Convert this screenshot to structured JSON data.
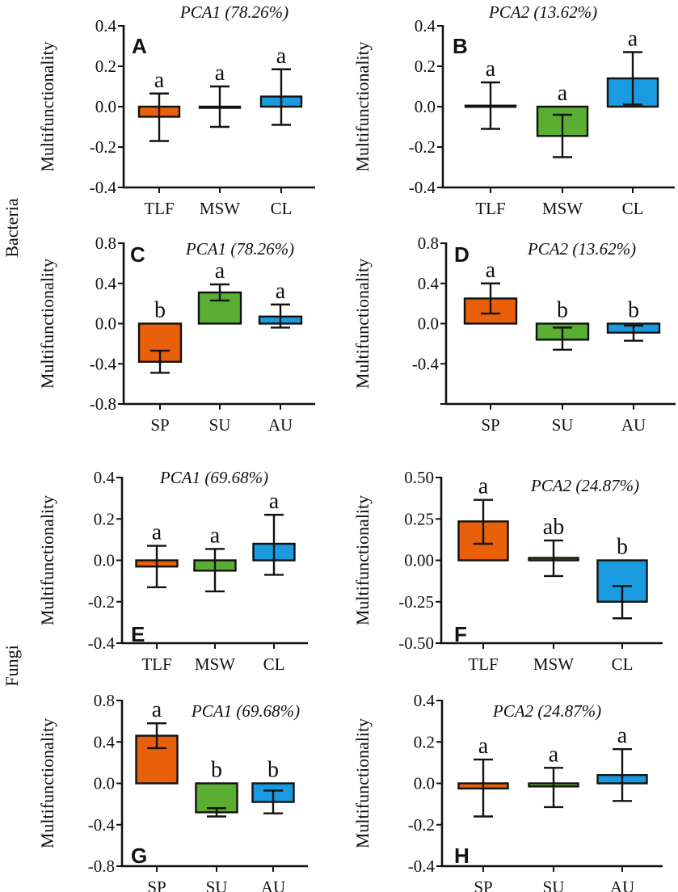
{
  "chart_data": {
    "type": "bar",
    "colors": {
      "orange": "#E8600A",
      "green": "#5AAE32",
      "blue": "#1A9BE0",
      "dark_green": "#5E8A34"
    },
    "row_labels": [
      "Bacteria",
      "Fungi"
    ],
    "ylabel": "Multifunctionality",
    "panels": [
      {
        "id": "A",
        "title": "PCA1 (78.26%)",
        "ylim": [
          -0.4,
          0.4
        ],
        "ticks": [
          "0.4",
          "0.2",
          "0.0",
          "-0.2",
          "-0.4"
        ],
        "categories": [
          "TLF",
          "MSW",
          "CL"
        ],
        "values": [
          -0.05,
          0.0,
          0.05
        ],
        "err_high": [
          0.065,
          0.1,
          0.185
        ],
        "err_low": [
          -0.17,
          -0.1,
          -0.09
        ],
        "sig": [
          "a",
          "a",
          "a"
        ],
        "colors": [
          "orange",
          "green",
          "blue"
        ]
      },
      {
        "id": "B",
        "title": "PCA2 (13.62%)",
        "ylim": [
          -0.4,
          0.4
        ],
        "ticks": [
          "0.4",
          "0.2",
          "0.0",
          "-0.2",
          "-0.4"
        ],
        "categories": [
          "TLF",
          "MSW",
          "CL"
        ],
        "values": [
          0.005,
          -0.145,
          0.14
        ],
        "err_high": [
          0.12,
          -0.04,
          0.27
        ],
        "err_low": [
          -0.11,
          -0.25,
          0.01
        ],
        "sig": [
          "a",
          "a",
          "a"
        ],
        "colors": [
          "orange",
          "green",
          "blue"
        ]
      },
      {
        "id": "C",
        "title": "PCA1 (78.26%)",
        "ylim": [
          -0.8,
          0.8
        ],
        "ticks": [
          "0.8",
          "0.4",
          "0.0",
          "-0.4",
          "-0.8"
        ],
        "categories": [
          "SP",
          "SU",
          "AU"
        ],
        "values": [
          -0.38,
          0.31,
          0.07
        ],
        "err_high": [
          -0.27,
          0.39,
          0.19
        ],
        "err_low": [
          -0.49,
          0.23,
          -0.04
        ],
        "sig": [
          "b",
          "a",
          "a"
        ],
        "colors": [
          "orange",
          "green",
          "blue"
        ]
      },
      {
        "id": "D",
        "title": "PCA2 (13.62%)",
        "ylim": [
          -0.8,
          0.8
        ],
        "ticks": [
          "0.8",
          "0.4",
          "0.0",
          "-0.4",
          ""
        ],
        "categories": [
          "SP",
          "SU",
          "AU"
        ],
        "values": [
          0.25,
          -0.16,
          -0.09
        ],
        "err_high": [
          0.4,
          -0.04,
          -0.02
        ],
        "err_low": [
          0.1,
          -0.26,
          -0.17
        ],
        "sig": [
          "a",
          "b",
          "b"
        ],
        "colors": [
          "orange",
          "green",
          "blue"
        ]
      },
      {
        "id": "E",
        "title": "PCA1 (69.68%)",
        "ylim": [
          -0.4,
          0.4
        ],
        "ticks": [
          "0.4",
          "0.2",
          "0.0",
          "-0.2",
          "-0.4"
        ],
        "categories": [
          "TLF",
          "MSW",
          "CL"
        ],
        "values": [
          -0.03,
          -0.05,
          0.08
        ],
        "err_high": [
          0.07,
          0.055,
          0.22
        ],
        "err_low": [
          -0.13,
          -0.15,
          -0.07
        ],
        "sig": [
          "a",
          "a",
          "a"
        ],
        "colors": [
          "orange",
          "green",
          "blue"
        ]
      },
      {
        "id": "F",
        "title": "PCA2 (24.87%)",
        "ylim": [
          -0.5,
          0.5
        ],
        "ticks": [
          "0.50",
          "0.25",
          "0.00",
          "-0.25",
          "-0.50"
        ],
        "categories": [
          "TLF",
          "MSW",
          "CL"
        ],
        "values": [
          0.235,
          0.015,
          -0.25
        ],
        "err_high": [
          0.365,
          0.12,
          -0.155
        ],
        "err_low": [
          0.1,
          -0.095,
          -0.35
        ],
        "sig": [
          "a",
          "ab",
          "b"
        ],
        "colors": [
          "orange",
          "dark_green",
          "blue"
        ]
      },
      {
        "id": "G",
        "title": "PCA1 (69.68%)",
        "ylim": [
          -0.8,
          0.8
        ],
        "ticks": [
          "0.8",
          "0.4",
          "0.0",
          "-0.4",
          "-0.8"
        ],
        "categories": [
          "SP",
          "SU",
          "AU"
        ],
        "values": [
          0.46,
          -0.28,
          -0.18
        ],
        "err_high": [
          0.58,
          -0.24,
          -0.07
        ],
        "err_low": [
          0.34,
          -0.32,
          -0.29
        ],
        "sig": [
          "a",
          "b",
          "b"
        ],
        "colors": [
          "orange",
          "green",
          "blue"
        ]
      },
      {
        "id": "H",
        "title": "PCA2 (24.87%)",
        "ylim": [
          -0.4,
          0.4
        ],
        "ticks": [
          "0.4",
          "0.2",
          "0.0",
          "-0.2",
          "-0.4"
        ],
        "categories": [
          "SP",
          "SU",
          "AU"
        ],
        "values": [
          -0.025,
          -0.015,
          0.04
        ],
        "err_high": [
          0.115,
          0.075,
          0.165
        ],
        "err_low": [
          -0.16,
          -0.115,
          -0.085
        ],
        "sig": [
          "a",
          "a",
          "a"
        ],
        "colors": [
          "orange",
          "green",
          "blue"
        ]
      }
    ]
  }
}
